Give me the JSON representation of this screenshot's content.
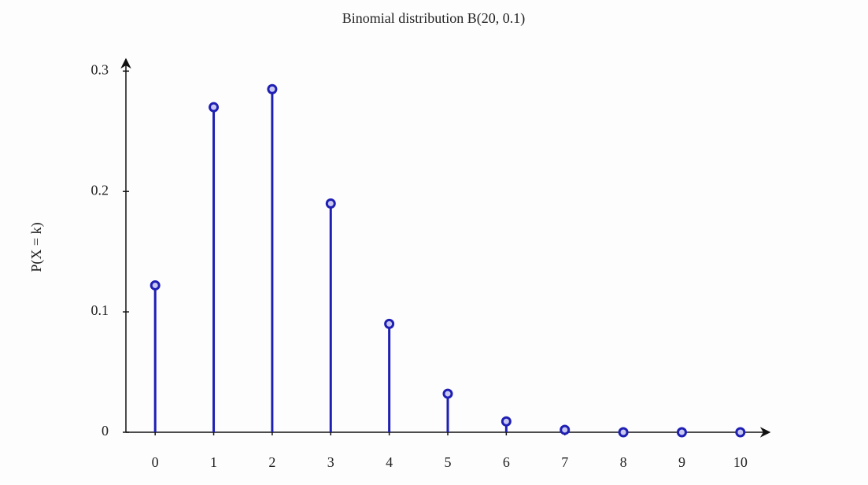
{
  "chart_data": {
    "type": "stem",
    "title": "Binomial distribution B(20, 0.1)",
    "y_label": "P(X = k)",
    "x": [
      0,
      1,
      2,
      3,
      4,
      5,
      6,
      7,
      8,
      9,
      10
    ],
    "values": [
      0.122,
      0.27,
      0.285,
      0.19,
      0.09,
      0.032,
      0.009,
      0.002,
      0,
      0,
      0
    ],
    "color": "#1f1fb4",
    "xlim": [
      -0.5,
      10.5
    ],
    "ylim": [
      0,
      0.31
    ],
    "xticks": [
      0,
      1,
      2,
      3,
      4,
      5,
      6,
      7,
      8,
      9,
      10
    ],
    "yticks": [
      0,
      0.1,
      0.2,
      0.3
    ]
  }
}
